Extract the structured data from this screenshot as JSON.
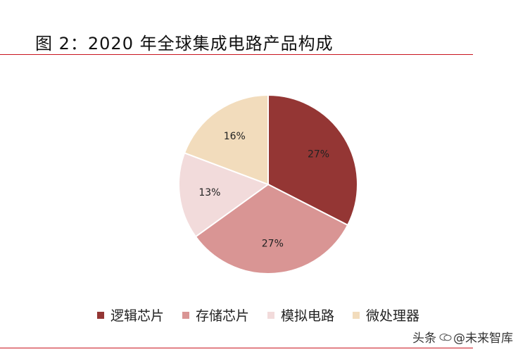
{
  "title": "图 2：2020 年全球集成电路产品构成",
  "chart_data": {
    "type": "pie",
    "title": "",
    "labels": [
      "逻辑芯片",
      "存储芯片",
      "模拟电路",
      "微处理器"
    ],
    "values": [
      27,
      27,
      13,
      16
    ],
    "value_labels": [
      "27%",
      "27%",
      "13%",
      "16%"
    ],
    "colors": [
      "#943634",
      "#d99594",
      "#f2dbdb",
      "#f2dcbc"
    ],
    "legend_position": "bottom"
  },
  "watermark": {
    "prefix": "头条",
    "handle": "@未来智库"
  }
}
